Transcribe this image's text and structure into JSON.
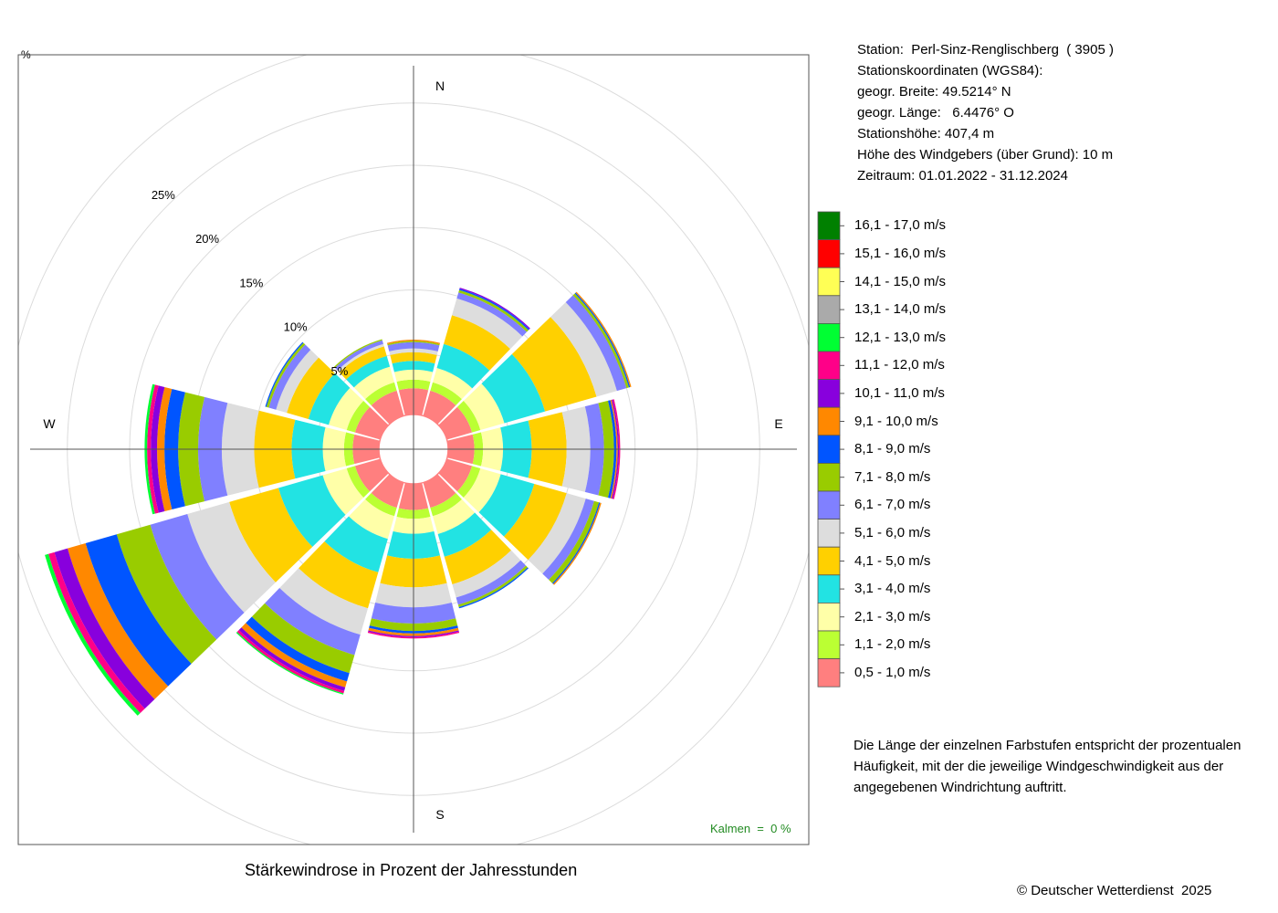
{
  "station": {
    "lines": [
      "Station:  Perl-Sinz-Renglischberg  ( 3905 )",
      "Stationskoordinaten (WGS84):",
      "geogr. Breite: 49.5214° N",
      "geogr. Länge:   6.4476° O",
      "Stationshöhe: 407,4 m",
      "Höhe des Windgebers (über Grund): 10 m",
      "Zeitraum: 01.01.2022 - 31.12.2024"
    ]
  },
  "note": "Die Länge der einzelnen Farbstufen entspricht der prozentualen Häufigkeit, mit der die jeweilige Windgeschwindigkeit aus der angegebenen Windrichtung auftritt.",
  "calm_label": "Kalmen  =  0 %",
  "copyright": "© Deutscher Wetterdienst  2025",
  "chart_data": {
    "type": "windrose",
    "title": "Stärkewindrose in Prozent der Jahresstunden",
    "unit_label": "%",
    "compass": [
      "N",
      "E",
      "S",
      "W"
    ],
    "radial_ticks": [
      5,
      10,
      15,
      20,
      25
    ],
    "radial_tick_labels": [
      "5%",
      "10%",
      "15%",
      "20%",
      "25%"
    ],
    "radial_max": 30,
    "calm_percent": 0,
    "direction_bins_deg": [
      0,
      30,
      60,
      90,
      120,
      150,
      180,
      210,
      240,
      270,
      300,
      330
    ],
    "speed_classes": [
      {
        "label": "0,5 - 1,0 m/s",
        "color": "#FF7F7F"
      },
      {
        "label": "1,1 - 2,0 m/s",
        "color": "#BBFF33"
      },
      {
        "label": "2,1 - 3,0 m/s",
        "color": "#FFFFA8"
      },
      {
        "label": "3,1 - 4,0 m/s",
        "color": "#22E3E3"
      },
      {
        "label": "4,1 - 5,0 m/s",
        "color": "#FFD000"
      },
      {
        "label": "5,1 - 6,0 m/s",
        "color": "#DDDDDD"
      },
      {
        "label": "6,1 - 7,0 m/s",
        "color": "#8080FF"
      },
      {
        "label": "7,1 - 8,0 m/s",
        "color": "#99CC00"
      },
      {
        "label": "8,1 - 9,0 m/s",
        "color": "#0055FF"
      },
      {
        "label": "9,1 - 10,0 m/s",
        "color": "#FF8800"
      },
      {
        "label": "10,1 - 11,0 m/s",
        "color": "#8800DD"
      },
      {
        "label": "11,1 - 12,0 m/s",
        "color": "#FF0088"
      },
      {
        "label": "12,1 - 13,0 m/s",
        "color": "#00FF33"
      },
      {
        "label": "13,1 - 14,0 m/s",
        "color": "#AAAAAA"
      },
      {
        "label": "14,1 - 15,0 m/s",
        "color": "#FFFF55"
      },
      {
        "label": "15,1 - 16,0 m/s",
        "color": "#FF0000"
      },
      {
        "label": "16,1 - 17,0 m/s",
        "color": "#008000"
      }
    ],
    "cumulative_percent": [
      [
        2.1,
        2.8,
        3.6,
        4.3,
        5.0,
        5.3,
        5.8,
        5.9,
        5.9,
        6.0,
        6.0,
        6.0,
        6.0,
        6.0,
        6.0,
        6.0,
        6.0
      ],
      [
        2.1,
        2.8,
        4.0,
        6.0,
        8.4,
        9.8,
        10.3,
        10.5,
        10.6,
        10.6,
        10.7,
        10.7,
        10.7,
        10.7,
        10.7,
        10.7,
        10.7
      ],
      [
        2.1,
        2.8,
        4.8,
        8.2,
        12.5,
        14.2,
        15.0,
        15.2,
        15.3,
        15.4,
        15.4,
        15.4,
        15.4,
        15.4,
        15.4,
        15.4,
        15.4
      ],
      [
        2.1,
        2.8,
        4.4,
        6.7,
        9.5,
        11.4,
        12.5,
        13.3,
        13.5,
        13.6,
        13.7,
        13.8,
        13.8,
        13.8,
        13.8,
        13.8,
        13.8
      ],
      [
        2.1,
        2.8,
        4.5,
        7.3,
        10.0,
        11.6,
        12.3,
        12.7,
        12.8,
        12.9,
        12.9,
        12.9,
        12.9,
        12.9,
        12.9,
        12.9,
        12.9
      ],
      [
        2.1,
        2.8,
        4.3,
        6.2,
        8.5,
        9.6,
        10.2,
        10.4,
        10.5,
        10.5,
        10.5,
        10.5,
        10.5,
        10.5,
        10.5,
        10.5,
        10.5
      ],
      [
        2.1,
        2.8,
        4.0,
        6.0,
        8.3,
        9.9,
        11.2,
        11.8,
        12.0,
        12.2,
        12.3,
        12.4,
        12.4,
        12.4,
        12.4,
        12.4,
        12.4
      ],
      [
        2.1,
        2.8,
        4.7,
        7.5,
        10.5,
        12.7,
        14.4,
        15.9,
        16.6,
        17.1,
        17.4,
        17.6,
        17.7,
        17.7,
        17.7,
        17.7,
        17.7
      ],
      [
        2.1,
        2.8,
        4.8,
        8.5,
        12.6,
        16.1,
        19.2,
        22.0,
        24.6,
        26.1,
        27.2,
        27.7,
        28.0,
        28.0,
        28.0,
        28.0,
        28.0
      ],
      [
        2.1,
        2.8,
        4.5,
        7.0,
        10.0,
        12.6,
        14.5,
        16.1,
        17.2,
        17.8,
        18.3,
        18.6,
        18.8,
        18.8,
        18.8,
        18.8,
        18.8
      ],
      [
        2.1,
        2.8,
        4.3,
        6.0,
        7.8,
        8.7,
        9.3,
        9.5,
        9.6,
        9.6,
        9.6,
        9.6,
        9.6,
        9.6,
        9.6,
        9.6,
        9.6
      ],
      [
        2.1,
        2.8,
        4.1,
        5.0,
        5.8,
        6.0,
        6.3,
        6.4,
        6.4,
        6.4,
        6.4,
        6.4,
        6.4,
        6.4,
        6.4,
        6.4,
        6.4
      ]
    ]
  }
}
